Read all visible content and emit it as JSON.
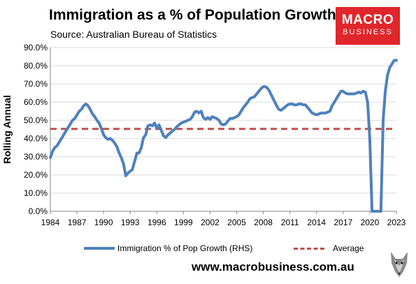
{
  "header": {
    "title": "Immigration as a % of Population Growth",
    "subtitle": "Source: Australian Bureau of Statistics"
  },
  "logo": {
    "line1": "MACRO",
    "line2": "BUSINESS"
  },
  "footer": {
    "website": "www.macrobusiness.com.au",
    "wolf_icon": "wolf-head-icon"
  },
  "colors": {
    "series": "#4f81bd",
    "average": "#c0504d",
    "grid": "#d9d9d9",
    "logo": "#e0262b"
  },
  "chart_data": {
    "type": "line",
    "ylabel": "Rolling Annual",
    "xlim": [
      1984,
      2023
    ],
    "ylim": [
      0,
      90
    ],
    "x_ticks": [
      "1984",
      "1987",
      "1990",
      "1993",
      "1996",
      "1999",
      "2002",
      "2005",
      "2008",
      "2011",
      "2014",
      "2017",
      "2020",
      "2023"
    ],
    "y_ticks": [
      "0.0%",
      "10.0%",
      "20.0%",
      "30.0%",
      "40.0%",
      "50.0%",
      "60.0%",
      "70.0%",
      "80.0%",
      "90.0%"
    ],
    "grid": true,
    "legend_position": "bottom",
    "series": [
      {
        "name": "Immigration % of Pop Growth (RHS)",
        "color": "#4f81bd",
        "points": [
          [
            1984.0,
            29.5
          ],
          [
            1984.25,
            33
          ],
          [
            1984.5,
            35
          ],
          [
            1984.75,
            36
          ],
          [
            1985.0,
            38
          ],
          [
            1985.25,
            40
          ],
          [
            1985.5,
            42
          ],
          [
            1985.75,
            44
          ],
          [
            1986.0,
            46
          ],
          [
            1986.25,
            48
          ],
          [
            1986.5,
            50
          ],
          [
            1986.75,
            51
          ],
          [
            1987.0,
            53
          ],
          [
            1987.25,
            55
          ],
          [
            1987.5,
            56
          ],
          [
            1987.75,
            58
          ],
          [
            1988.0,
            59
          ],
          [
            1988.25,
            58
          ],
          [
            1988.5,
            56
          ],
          [
            1988.75,
            53.5
          ],
          [
            1989.0,
            52
          ],
          [
            1989.25,
            50
          ],
          [
            1989.5,
            48.5
          ],
          [
            1989.75,
            45.5
          ],
          [
            1990.0,
            42
          ],
          [
            1990.25,
            40.5
          ],
          [
            1990.5,
            39.5
          ],
          [
            1990.75,
            40
          ],
          [
            1991.0,
            39
          ],
          [
            1991.25,
            37.5
          ],
          [
            1991.5,
            35.5
          ],
          [
            1991.75,
            32
          ],
          [
            1992.0,
            29.5
          ],
          [
            1992.25,
            26
          ],
          [
            1992.5,
            19.5
          ],
          [
            1992.75,
            21
          ],
          [
            1993.0,
            22
          ],
          [
            1993.25,
            23
          ],
          [
            1993.5,
            27.5
          ],
          [
            1993.75,
            32
          ],
          [
            1994.0,
            32
          ],
          [
            1994.25,
            35
          ],
          [
            1994.5,
            40.5
          ],
          [
            1994.75,
            42
          ],
          [
            1995.0,
            47
          ],
          [
            1995.25,
            47.5
          ],
          [
            1995.5,
            47
          ],
          [
            1995.75,
            48.5
          ],
          [
            1996.0,
            45.5
          ],
          [
            1996.25,
            47.5
          ],
          [
            1996.5,
            44.5
          ],
          [
            1996.75,
            41.5
          ],
          [
            1997.0,
            40.5
          ],
          [
            1997.25,
            42
          ],
          [
            1997.5,
            43
          ],
          [
            1997.75,
            44
          ],
          [
            1998.0,
            45
          ],
          [
            1998.25,
            46.5
          ],
          [
            1998.5,
            47.5
          ],
          [
            1998.75,
            48.5
          ],
          [
            1999.0,
            49
          ],
          [
            1999.25,
            49.5
          ],
          [
            1999.5,
            50
          ],
          [
            1999.75,
            50.5
          ],
          [
            2000.0,
            52
          ],
          [
            2000.25,
            54.5
          ],
          [
            2000.5,
            55
          ],
          [
            2000.75,
            54
          ],
          [
            2001.0,
            55
          ],
          [
            2001.25,
            51.5
          ],
          [
            2001.5,
            50.5
          ],
          [
            2001.75,
            51.5
          ],
          [
            2002.0,
            50.5
          ],
          [
            2002.25,
            52
          ],
          [
            2002.5,
            51.5
          ],
          [
            2002.75,
            51
          ],
          [
            2003.0,
            50
          ],
          [
            2003.25,
            48
          ],
          [
            2003.5,
            47.5
          ],
          [
            2003.75,
            48
          ],
          [
            2004.0,
            49.5
          ],
          [
            2004.25,
            51
          ],
          [
            2004.5,
            51
          ],
          [
            2004.75,
            51.5
          ],
          [
            2005.0,
            52
          ],
          [
            2005.25,
            53
          ],
          [
            2005.5,
            55
          ],
          [
            2005.75,
            57
          ],
          [
            2006.0,
            58.5
          ],
          [
            2006.25,
            60
          ],
          [
            2006.5,
            62
          ],
          [
            2006.75,
            62.5
          ],
          [
            2007.0,
            63
          ],
          [
            2007.25,
            64.5
          ],
          [
            2007.5,
            66
          ],
          [
            2007.75,
            67.5
          ],
          [
            2008.0,
            68.5
          ],
          [
            2008.25,
            68.5
          ],
          [
            2008.5,
            67.5
          ],
          [
            2008.75,
            65.5
          ],
          [
            2009.0,
            63
          ],
          [
            2009.25,
            60.5
          ],
          [
            2009.5,
            58
          ],
          [
            2009.75,
            56
          ],
          [
            2010.0,
            55.5
          ],
          [
            2010.25,
            56.5
          ],
          [
            2010.5,
            57.5
          ],
          [
            2010.75,
            58.5
          ],
          [
            2011.0,
            59
          ],
          [
            2011.25,
            59
          ],
          [
            2011.5,
            58.5
          ],
          [
            2011.75,
            58.5
          ],
          [
            2012.0,
            59
          ],
          [
            2012.25,
            59
          ],
          [
            2012.5,
            58.5
          ],
          [
            2012.75,
            58.5
          ],
          [
            2013.0,
            57
          ],
          [
            2013.25,
            55.5
          ],
          [
            2013.5,
            54
          ],
          [
            2013.75,
            53.5
          ],
          [
            2014.0,
            53
          ],
          [
            2014.25,
            53.5
          ],
          [
            2014.5,
            54
          ],
          [
            2014.75,
            54
          ],
          [
            2015.0,
            54
          ],
          [
            2015.25,
            54.5
          ],
          [
            2015.5,
            55
          ],
          [
            2015.75,
            58
          ],
          [
            2016.0,
            60
          ],
          [
            2016.25,
            62
          ],
          [
            2016.5,
            64
          ],
          [
            2016.75,
            66
          ],
          [
            2017.0,
            66
          ],
          [
            2017.25,
            65
          ],
          [
            2017.5,
            64.5
          ],
          [
            2017.75,
            64.5
          ],
          [
            2018.0,
            64.5
          ],
          [
            2018.25,
            64.5
          ],
          [
            2018.5,
            65
          ],
          [
            2018.75,
            65.5
          ],
          [
            2019.0,
            65
          ],
          [
            2019.25,
            66
          ],
          [
            2019.5,
            65.5
          ],
          [
            2019.75,
            60
          ],
          [
            2020.0,
            40
          ],
          [
            2020.25,
            0
          ],
          [
            2020.5,
            0
          ],
          [
            2020.75,
            0
          ],
          [
            2021.0,
            0
          ],
          [
            2021.25,
            0
          ],
          [
            2021.5,
            50
          ],
          [
            2021.75,
            66
          ],
          [
            2022.0,
            75
          ],
          [
            2022.25,
            79
          ],
          [
            2022.5,
            81
          ],
          [
            2022.75,
            83
          ],
          [
            2023.0,
            83
          ]
        ]
      },
      {
        "name": "Average",
        "color": "#c0504d",
        "dashed": true,
        "value": 45.3
      }
    ]
  }
}
